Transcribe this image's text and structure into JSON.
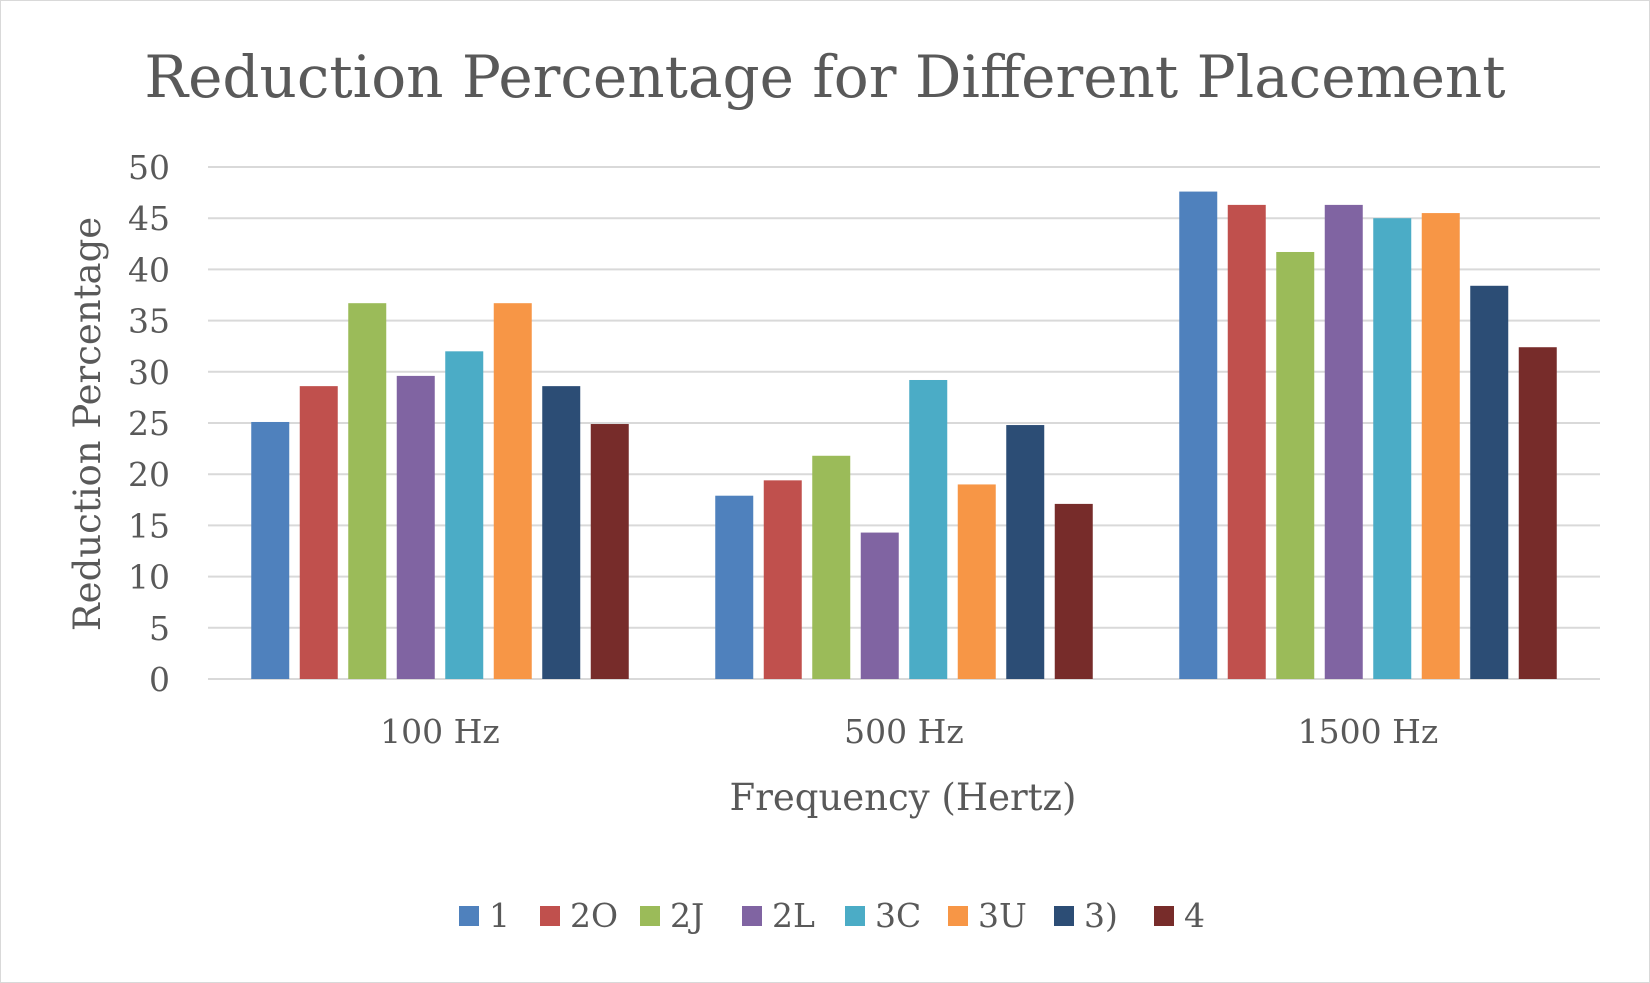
{
  "chart_data": {
    "type": "bar",
    "title": "Reduction Percentage for Different Placement",
    "xlabel": "Frequency (Hertz)",
    "ylabel": "Reduction Percentage",
    "ylim": [
      0,
      50
    ],
    "yticks": [
      0,
      5,
      10,
      15,
      20,
      25,
      30,
      35,
      40,
      45,
      50
    ],
    "grid": true,
    "legend_position": "bottom",
    "categories": [
      "100 Hz",
      "500 Hz",
      "1500 Hz"
    ],
    "series": [
      {
        "name": "1",
        "color": "#4f81bd",
        "values": [
          25.1,
          17.9,
          47.6
        ]
      },
      {
        "name": "2O",
        "color": "#c0504d",
        "values": [
          28.6,
          19.4,
          46.3
        ]
      },
      {
        "name": "2J",
        "color": "#9bbb59",
        "values": [
          36.7,
          21.8,
          41.7
        ]
      },
      {
        "name": "2L",
        "color": "#8064a2",
        "values": [
          29.6,
          14.3,
          46.3
        ]
      },
      {
        "name": "3C",
        "color": "#4bacc6",
        "values": [
          32.0,
          29.2,
          45.0
        ]
      },
      {
        "name": "3U",
        "color": "#f79646",
        "values": [
          36.7,
          19.0,
          45.5
        ]
      },
      {
        "name": "3)",
        "color": "#2c4d75",
        "values": [
          28.6,
          24.8,
          38.4
        ]
      },
      {
        "name": "4",
        "color": "#772c2a",
        "values": [
          24.9,
          17.1,
          32.4
        ]
      }
    ]
  }
}
